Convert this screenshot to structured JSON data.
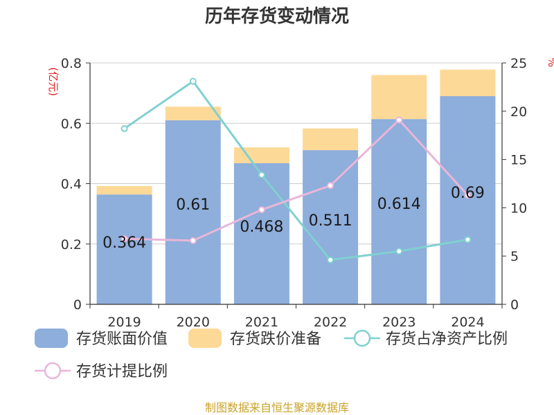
{
  "chart_data": {
    "type": "bar",
    "title": "历年存货变动情况",
    "categories": [
      "2019",
      "2020",
      "2021",
      "2022",
      "2023",
      "2024"
    ],
    "y_left": {
      "label": "(亿元)",
      "ylim": [
        0,
        0.8
      ],
      "ticks": [
        0,
        0.2,
        0.4,
        0.6,
        0.8
      ]
    },
    "y_right": {
      "label": "%",
      "ylim": [
        0,
        25
      ],
      "ticks": [
        0,
        5,
        10,
        15,
        20,
        25
      ]
    },
    "bar_series": [
      {
        "name": "存货账面价值",
        "color": "#8eaedb",
        "values": [
          0.364,
          0.61,
          0.468,
          0.511,
          0.614,
          0.69
        ],
        "labels": [
          "0.364",
          "0.61",
          "0.468",
          "0.511",
          "0.614",
          "0.69"
        ]
      },
      {
        "name": "存货跌价准备",
        "color": "#fdd998",
        "values": [
          0.028,
          0.045,
          0.052,
          0.072,
          0.146,
          0.088
        ]
      }
    ],
    "line_series": [
      {
        "name": "存货占净资产比例",
        "color": "#7fd1d0",
        "values": [
          18.2,
          23.1,
          13.4,
          4.6,
          5.5,
          6.7
        ]
      },
      {
        "name": "存货计提比例",
        "color": "#e9b6d8",
        "values": [
          6.8,
          6.6,
          9.8,
          12.3,
          19.1,
          11.3
        ]
      }
    ],
    "grid": true,
    "legend_position": "bottom"
  },
  "source": "制图数据来自恒生聚源数据库"
}
